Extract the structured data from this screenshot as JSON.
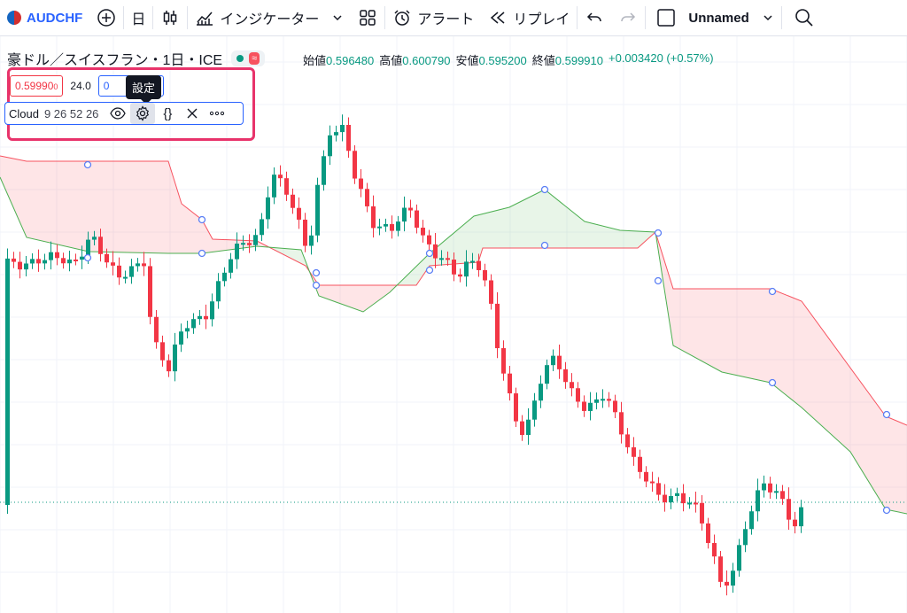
{
  "toolbar": {
    "symbol": "AUDCHF",
    "interval": "日",
    "indicators_label": "インジケーター",
    "alert_label": "アラート",
    "replay_label": "リプレイ",
    "layout_name": "Unnamed"
  },
  "legend": {
    "title": "豪ドル／スイスフラン・1日・ICE",
    "wave": "≈",
    "open_label": "始値",
    "open": "0.596480",
    "high_label": "高値",
    "high": "0.600790",
    "low_label": "安値",
    "low": "0.595200",
    "close_label": "終値",
    "close": "0.599910",
    "change": "+0.003420 (+0.57%)"
  },
  "order": {
    "sell_price": "0.59990",
    "sell_suffix": "0",
    "spread": "24.0",
    "buy_price_visible": "0"
  },
  "tooltip": "設定",
  "indicator": {
    "name": "Cloud",
    "params": "9 26 52 26",
    "source_label": "{}"
  },
  "colors": {
    "up": "#089981",
    "down": "#f23645",
    "cloud_red": "#f7525f",
    "cloud_green": "#4caf50",
    "accent": "#2962ff",
    "highlight": "#e8336b"
  },
  "chart_data": {
    "type": "candlestick",
    "cloud": {
      "span_a": [
        [
          0,
          176
        ],
        [
          30,
          182
        ],
        [
          100,
          182
        ],
        [
          190,
          182
        ],
        [
          205,
          230
        ],
        [
          228,
          248
        ],
        [
          240,
          270
        ],
        [
          290,
          272
        ],
        [
          345,
          300
        ],
        [
          360,
          322
        ],
        [
          470,
          322
        ],
        [
          485,
          300
        ],
        [
          540,
          296
        ],
        [
          545,
          280
        ],
        [
          720,
          280
        ],
        [
          740,
          262
        ],
        [
          760,
          326
        ],
        [
          870,
          326
        ],
        [
          905,
          340
        ],
        [
          1000,
          470
        ],
        [
          1024,
          480
        ]
      ],
      "span_b": [
        [
          0,
          200
        ],
        [
          30,
          268
        ],
        [
          100,
          284
        ],
        [
          190,
          286
        ],
        [
          228,
          286
        ],
        [
          290,
          278
        ],
        [
          340,
          282
        ],
        [
          360,
          334
        ],
        [
          410,
          352
        ],
        [
          440,
          330
        ],
        [
          485,
          286
        ],
        [
          535,
          244
        ],
        [
          575,
          234
        ],
        [
          615,
          214
        ],
        [
          660,
          250
        ],
        [
          700,
          260
        ],
        [
          740,
          262
        ],
        [
          760,
          390
        ],
        [
          815,
          420
        ],
        [
          870,
          432
        ],
        [
          905,
          460
        ],
        [
          960,
          510
        ],
        [
          1000,
          575
        ],
        [
          1024,
          580
        ]
      ],
      "markers": [
        [
          99,
          186
        ],
        [
          99,
          291
        ],
        [
          228,
          248
        ],
        [
          228,
          286
        ],
        [
          357,
          308
        ],
        [
          357,
          322
        ],
        [
          485,
          286
        ],
        [
          485,
          305
        ],
        [
          615,
          214
        ],
        [
          615,
          277
        ],
        [
          743,
          263
        ],
        [
          743,
          317
        ],
        [
          872,
          329
        ],
        [
          872,
          432
        ],
        [
          1001,
          468
        ],
        [
          1001,
          576
        ]
      ]
    }
  }
}
